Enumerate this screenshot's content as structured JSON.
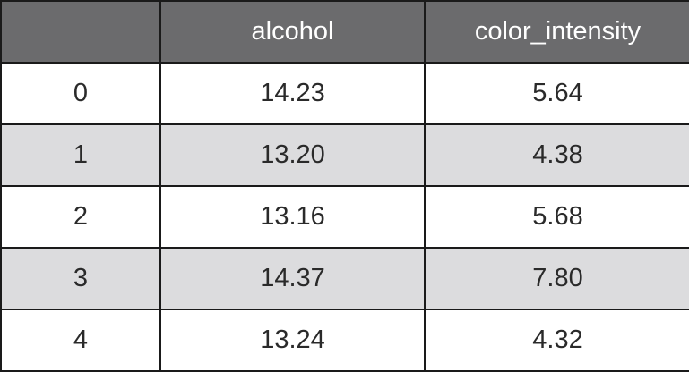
{
  "table": {
    "headers": [
      "",
      "alcohol",
      "color_intensity"
    ],
    "rows": [
      {
        "index": "0",
        "alcohol": "14.23",
        "color_intensity": "5.64"
      },
      {
        "index": "1",
        "alcohol": "13.20",
        "color_intensity": "4.38"
      },
      {
        "index": "2",
        "alcohol": "13.16",
        "color_intensity": "5.68"
      },
      {
        "index": "3",
        "alcohol": "14.37",
        "color_intensity": "7.80"
      },
      {
        "index": "4",
        "alcohol": "13.24",
        "color_intensity": "4.32"
      }
    ]
  },
  "colors": {
    "header_bg": "#6b6b6d",
    "header_text": "#ffffff",
    "row_alt_bg": "#dcdcde",
    "row_bg": "#ffffff",
    "border": "#1a1a1a"
  }
}
